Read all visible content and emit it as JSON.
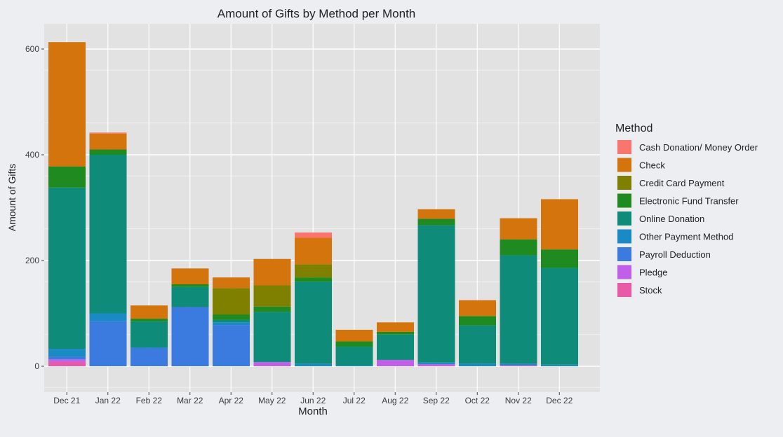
{
  "chart_data": {
    "type": "bar",
    "stacked": true,
    "title": "Amount of Gifts by Method per Month",
    "xlabel": "Month",
    "ylabel": "Amount of Gifts",
    "ylim": [
      0,
      650
    ],
    "yticks": [
      0,
      200,
      400,
      600
    ],
    "grid": true,
    "legend": {
      "title": "Method",
      "placement": "right"
    },
    "categories": [
      "Dec 21",
      "Jan 22",
      "Feb 22",
      "Mar 22",
      "Apr 22",
      "May 22",
      "Jun 22",
      "Jul 22",
      "Aug 22",
      "Sep 22",
      "Oct 22",
      "Nov 22",
      "Dec 22"
    ],
    "series": [
      {
        "name": "Cash Donation/ Money Order",
        "color": "#f8766d",
        "values": [
          0,
          2,
          0,
          0,
          0,
          0,
          10,
          0,
          0,
          0,
          0,
          0,
          0
        ]
      },
      {
        "name": "Check",
        "color": "#d4740c",
        "values": [
          235,
          30,
          25,
          30,
          20,
          50,
          50,
          22,
          18,
          18,
          30,
          40,
          95
        ]
      },
      {
        "name": "Credit Card Payment",
        "color": "#7f7f00",
        "values": [
          0,
          0,
          0,
          0,
          50,
          40,
          25,
          0,
          0,
          0,
          0,
          0,
          0
        ]
      },
      {
        "name": "Electronic Fund Transfer",
        "color": "#1f8a1f",
        "values": [
          40,
          10,
          5,
          5,
          10,
          10,
          8,
          10,
          5,
          12,
          18,
          30,
          35
        ]
      },
      {
        "name": "Online Donation",
        "color": "#0e8c79",
        "values": [
          305,
          300,
          50,
          38,
          5,
          95,
          155,
          35,
          48,
          260,
          72,
          205,
          183
        ]
      },
      {
        "name": "Other Payment Method",
        "color": "#1a8ac4",
        "values": [
          15,
          15,
          0,
          0,
          5,
          0,
          5,
          2,
          0,
          3,
          5,
          3,
          3
        ]
      },
      {
        "name": "Payroll Deduction",
        "color": "#3b7be0",
        "values": [
          5,
          85,
          35,
          112,
          78,
          0,
          0,
          0,
          0,
          0,
          0,
          0,
          0
        ]
      },
      {
        "name": "Pledge",
        "color": "#c060e8",
        "values": [
          5,
          0,
          0,
          0,
          0,
          8,
          0,
          0,
          12,
          4,
          0,
          2,
          0
        ]
      },
      {
        "name": "Stock",
        "color": "#e85aa8",
        "values": [
          8,
          0,
          0,
          0,
          0,
          0,
          0,
          0,
          0,
          0,
          0,
          0,
          0
        ]
      }
    ]
  }
}
